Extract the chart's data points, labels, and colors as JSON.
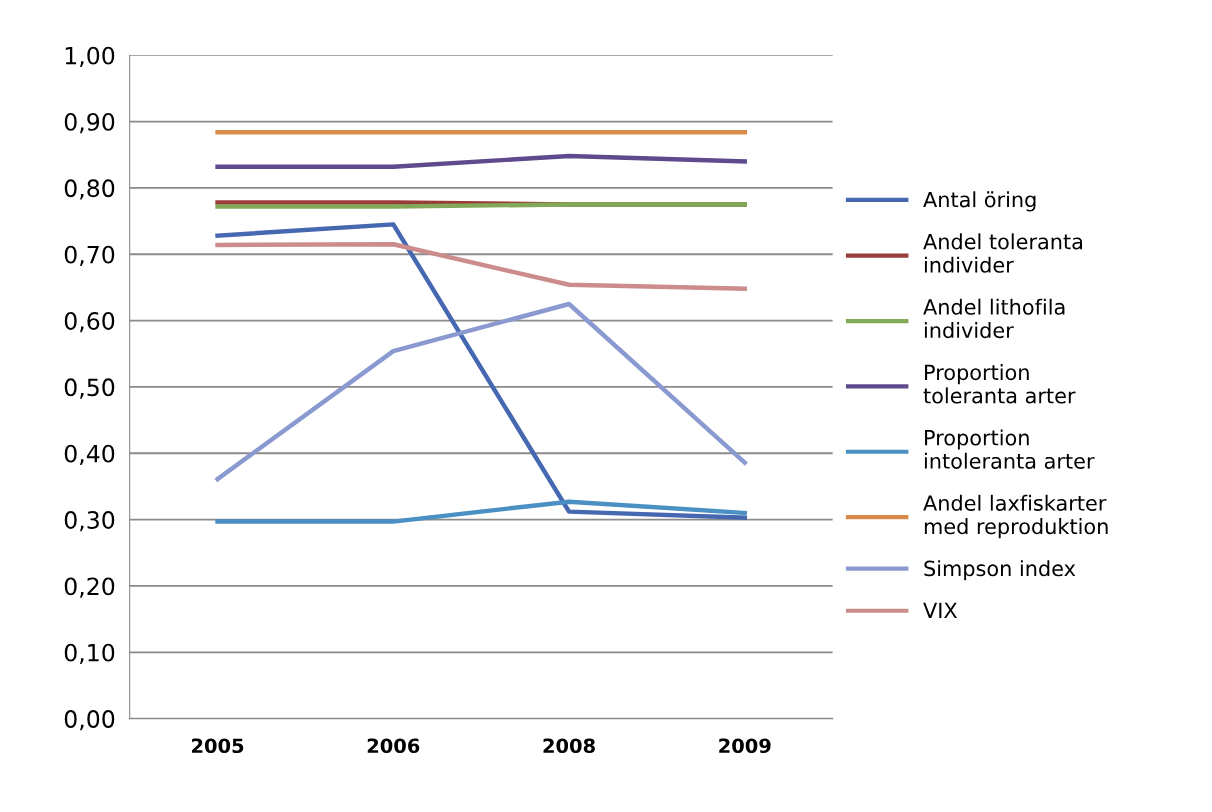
{
  "chart_data": {
    "type": "line",
    "categories": [
      "2005",
      "2006",
      "2008",
      "2009"
    ],
    "series": [
      {
        "name": "Antal öring",
        "color": "#4668b0",
        "values": [
          0.728,
          0.745,
          0.312,
          0.303
        ]
      },
      {
        "name": "Andel toleranta individer",
        "color": "#9a3d3a",
        "values": [
          0.778,
          0.778,
          0.775,
          0.775
        ]
      },
      {
        "name": "Andel lithofila individer",
        "color": "#82a95a",
        "values": [
          0.772,
          0.772,
          0.775,
          0.775
        ]
      },
      {
        "name": "Proportion toleranta arter",
        "color": "#5f4a8e",
        "values": [
          0.832,
          0.832,
          0.848,
          0.84
        ]
      },
      {
        "name": "Proportion intoleranta arter",
        "color": "#4a90c2",
        "values": [
          0.297,
          0.297,
          0.327,
          0.31
        ]
      },
      {
        "name": "Andel laxfiskarter med reproduktion",
        "color": "#d98b4c",
        "values": [
          0.884,
          0.884,
          0.884,
          0.884
        ]
      },
      {
        "name": "Simpson index",
        "color": "#8a9ad0",
        "values": [
          0.361,
          0.554,
          0.625,
          0.386
        ]
      },
      {
        "name": "VIX",
        "color": "#cc8c8c",
        "values": [
          0.714,
          0.715,
          0.654,
          0.648
        ]
      }
    ],
    "ylim": [
      0,
      1
    ],
    "yticks": [
      {
        "value": 0,
        "label": "0,00"
      },
      {
        "value": 0.1,
        "label": "0,10"
      },
      {
        "value": 0.2,
        "label": "0,20"
      },
      {
        "value": 0.3,
        "label": "0,30"
      },
      {
        "value": 0.4,
        "label": "0,40"
      },
      {
        "value": 0.5,
        "label": "0,50"
      },
      {
        "value": 0.6,
        "label": "0,60"
      },
      {
        "value": 0.7,
        "label": "0,70"
      },
      {
        "value": 0.8,
        "label": "0,80"
      },
      {
        "value": 0.9,
        "label": "0,90"
      },
      {
        "value": 1,
        "label": "1,00"
      }
    ],
    "grid": "y",
    "legend": "right",
    "marker": "none",
    "line_style": "solid"
  }
}
